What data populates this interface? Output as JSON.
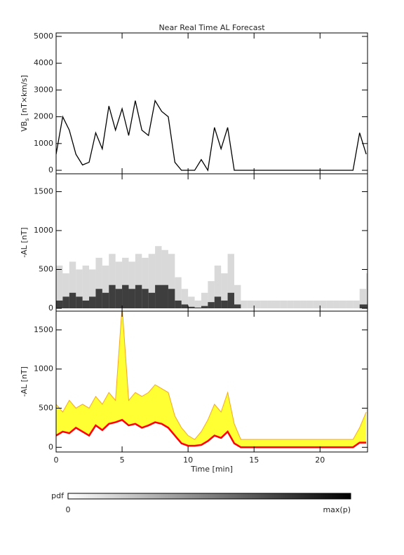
{
  "title": "Near Real Time AL Forecast",
  "colorbar": {
    "label": "pdf",
    "min_label": "0",
    "max_label": "max(p)"
  },
  "chart_data": [
    {
      "type": "line",
      "ylabel": {
        "main": "VB",
        "sub": "s",
        "unit": " [nT×km/s]"
      },
      "color": "#000000",
      "x": [
        0,
        0.5,
        1,
        1.5,
        2,
        2.5,
        3,
        3.5,
        4,
        4.5,
        5,
        5.5,
        6,
        6.5,
        7,
        7.5,
        8,
        8.5,
        9,
        9.5,
        10,
        10.5,
        11,
        11.5,
        12,
        12.5,
        13,
        13.5,
        14,
        14.5,
        15,
        15.5,
        16,
        16.5,
        17,
        17.5,
        18,
        18.5,
        19,
        19.5,
        20,
        20.5,
        21,
        21.5,
        22,
        22.5,
        23,
        23.5
      ],
      "values": [
        600,
        2000,
        1500,
        600,
        200,
        300,
        1400,
        800,
        2400,
        1500,
        2300,
        1300,
        2600,
        1500,
        1300,
        2600,
        2200,
        2000,
        300,
        0,
        0,
        0,
        400,
        0,
        1600,
        800,
        1600,
        0,
        0,
        0,
        0,
        0,
        0,
        0,
        0,
        0,
        0,
        0,
        0,
        0,
        0,
        0,
        0,
        0,
        0,
        0,
        1400,
        600
      ],
      "xlim": [
        0,
        23.6
      ],
      "ylim": [
        -130,
        5130
      ],
      "yticks": [
        0,
        1000,
        2000,
        3000,
        4000,
        5000
      ]
    },
    {
      "type": "heatmap",
      "ylabel": "-AL [nT]",
      "x": [
        0,
        0.5,
        1,
        1.5,
        2,
        2.5,
        3,
        3.5,
        4,
        4.5,
        5,
        5.5,
        6,
        6.5,
        7,
        7.5,
        8,
        8.5,
        9,
        9.5,
        10,
        10.5,
        11,
        11.5,
        12,
        12.5,
        13,
        13.5,
        14,
        14.5,
        15,
        15.5,
        16,
        16.5,
        17,
        17.5,
        18,
        18.5,
        19,
        19.5,
        20,
        20.5,
        21,
        21.5,
        22,
        22.5,
        23,
        23.5
      ],
      "spread": [
        550,
        450,
        600,
        500,
        550,
        500,
        650,
        550,
        700,
        600,
        650,
        600,
        700,
        650,
        700,
        800,
        750,
        700,
        400,
        250,
        150,
        100,
        200,
        350,
        550,
        450,
        700,
        300,
        100,
        100,
        100,
        100,
        100,
        100,
        100,
        100,
        100,
        100,
        100,
        100,
        100,
        100,
        100,
        100,
        100,
        100,
        250,
        450
      ],
      "core": [
        100,
        150,
        200,
        150,
        100,
        150,
        250,
        200,
        300,
        250,
        300,
        250,
        300,
        250,
        200,
        300,
        300,
        250,
        100,
        50,
        20,
        10,
        30,
        80,
        150,
        100,
        200,
        50,
        0,
        0,
        0,
        0,
        0,
        0,
        0,
        0,
        0,
        0,
        0,
        0,
        0,
        0,
        0,
        0,
        0,
        0,
        50,
        50
      ],
      "colors": {
        "spread": "#d0d0d0",
        "core": "#222222"
      },
      "xlim": [
        0,
        23.6
      ],
      "ylim": [
        -36,
        1730
      ],
      "yticks": [
        0,
        500,
        1000,
        1500
      ]
    },
    {
      "type": "band",
      "ylabel": "-AL [nT]",
      "xlabel": "Time [min]",
      "x": [
        0,
        0.5,
        1,
        1.5,
        2,
        2.5,
        3,
        3.5,
        4,
        4.5,
        5,
        5.5,
        6,
        6.5,
        7,
        7.5,
        8,
        8.5,
        9,
        9.5,
        10,
        10.5,
        11,
        11.5,
        12,
        12.5,
        13,
        13.5,
        14,
        14.5,
        15,
        15.5,
        16,
        16.5,
        17,
        17.5,
        18,
        18.5,
        19,
        19.5,
        20,
        20.5,
        21,
        21.5,
        22,
        22.5,
        23,
        23.5
      ],
      "upper": [
        550,
        450,
        600,
        500,
        550,
        500,
        650,
        550,
        700,
        600,
        1800,
        600,
        700,
        650,
        700,
        800,
        750,
        700,
        400,
        250,
        150,
        100,
        200,
        350,
        550,
        450,
        700,
        300,
        100,
        100,
        100,
        100,
        100,
        100,
        100,
        100,
        100,
        100,
        100,
        100,
        100,
        100,
        100,
        100,
        100,
        100,
        250,
        450
      ],
      "median": [
        150,
        200,
        180,
        250,
        200,
        150,
        280,
        220,
        300,
        320,
        350,
        280,
        300,
        250,
        280,
        320,
        300,
        250,
        150,
        50,
        20,
        20,
        30,
        80,
        150,
        120,
        200,
        50,
        0,
        0,
        0,
        0,
        0,
        0,
        0,
        0,
        0,
        0,
        0,
        0,
        0,
        0,
        0,
        0,
        0,
        0,
        60,
        60
      ],
      "colors": {
        "band": "#ffff33",
        "upper": "#f5a623",
        "median": "#ff0000"
      },
      "xlim": [
        0,
        23.6
      ],
      "ylim": [
        -60,
        1740
      ],
      "yticks": [
        0,
        500,
        1000,
        1500
      ],
      "xticks": [
        0,
        5,
        10,
        15,
        20
      ]
    }
  ]
}
